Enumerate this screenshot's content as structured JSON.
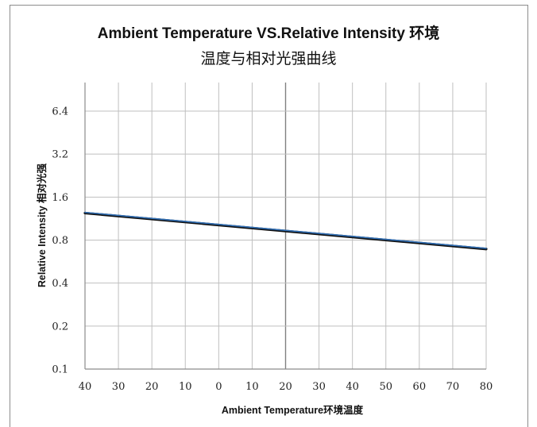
{
  "chart_data": {
    "type": "line",
    "title_line1": "Ambient Temperature VS.Relative Intensity 环境",
    "title_line2": "温度与相对光强曲线",
    "xlabel": "Ambient Temperature环境温度",
    "ylabel": "Relative Intensity 相对光强",
    "x_tick_labels": [
      "40",
      "30",
      "20",
      "10",
      "0",
      "10",
      "20",
      "30",
      "40",
      "50",
      "60",
      "70",
      "80"
    ],
    "y_tick_labels": [
      "0.1",
      "0.2",
      "0.4",
      "0.8",
      "1.6",
      "3.2",
      "6.4"
    ],
    "y_scale": "log2",
    "ylim": [
      0.1,
      6.4
    ],
    "grid": true,
    "series": [
      {
        "x": [
          -40,
          80
        ],
        "y": [
          1.25,
          0.7
        ],
        "colors": {
          "line": "#2f6eb5",
          "shadow": "#111111"
        }
      }
    ],
    "colors": {
      "grid": "#bfbfbf",
      "axis": "#8c8c8c",
      "highlight_gridline": "#808080"
    }
  }
}
